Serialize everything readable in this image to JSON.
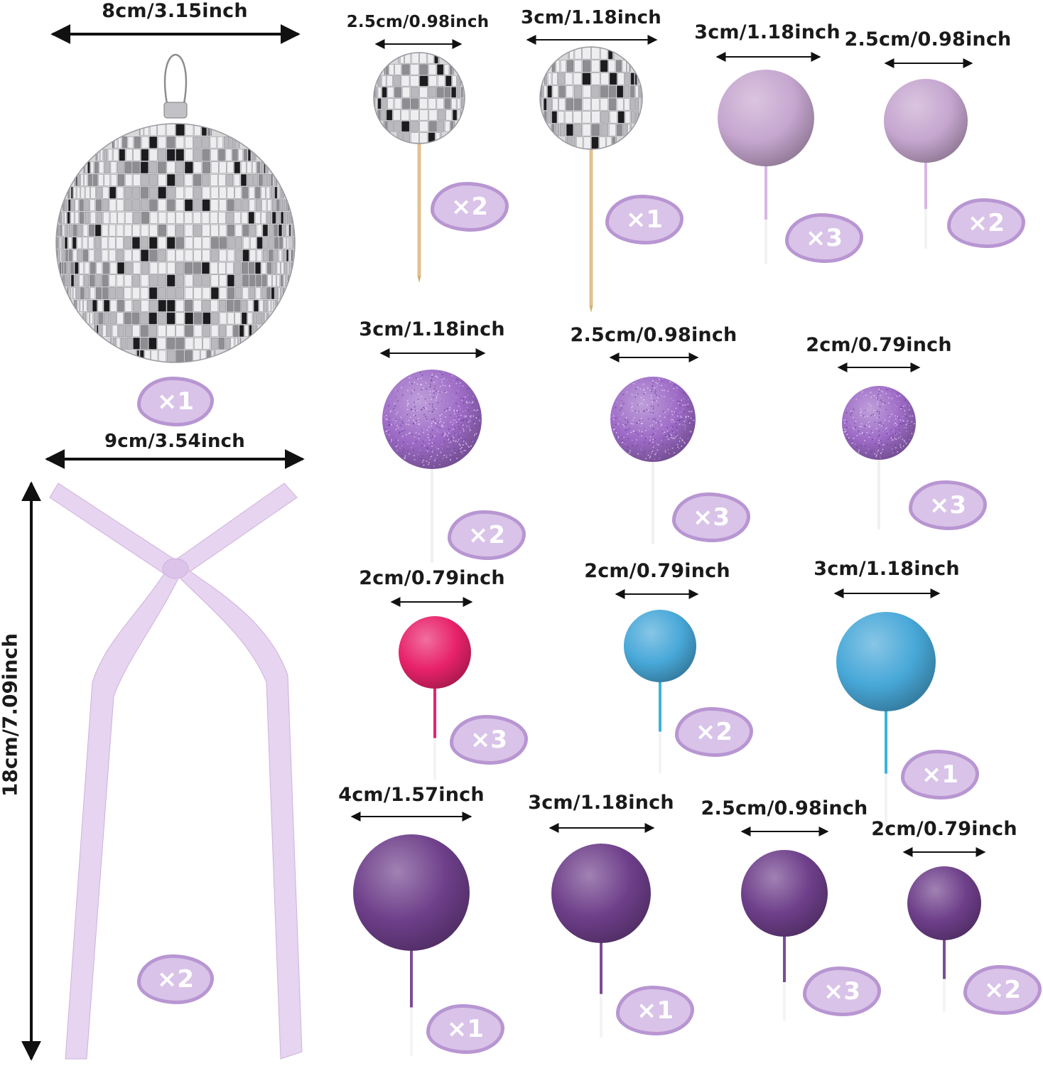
{
  "colors": {
    "badge_fill": "#d9c3e8",
    "badge_border": "#b896d2",
    "silver": "#c9c9cc",
    "lavender_matte": "#c6a6cf",
    "purple_glitter": "#9d6bc6",
    "hot_pink": "#e8226a",
    "sky_blue": "#48a8d8",
    "deep_purple": "#6e3f8a",
    "ribbon": "#e7d4f0"
  },
  "items": [
    {
      "id": "disco-ornament",
      "type": "disco-large",
      "size_label": "8cm/3.15inch",
      "qty_label": "×1"
    },
    {
      "id": "satin-ribbon-bow",
      "type": "ribbon",
      "width_label": "9cm/3.54inch",
      "length_label": "18cm/7.09inch",
      "qty_label": "×2"
    },
    {
      "id": "disco-topper-small",
      "type": "disco",
      "size_label": "2.5cm/0.98inch",
      "qty_label": "×2"
    },
    {
      "id": "disco-topper-large",
      "type": "disco",
      "size_label": "3cm/1.18inch",
      "qty_label": "×1"
    },
    {
      "id": "lavender-ball-3cm",
      "type": "matte",
      "color": "lavender",
      "size_label": "3cm/1.18inch",
      "qty_label": "×3"
    },
    {
      "id": "lavender-ball-2-5cm",
      "type": "matte",
      "color": "lavender",
      "size_label": "2.5cm/0.98inch",
      "qty_label": "×2"
    },
    {
      "id": "glitter-ball-3cm",
      "type": "glitter",
      "size_label": "3cm/1.18inch",
      "qty_label": "×2"
    },
    {
      "id": "glitter-ball-2-5cm",
      "type": "glitter",
      "size_label": "2.5cm/0.98inch",
      "qty_label": "×3"
    },
    {
      "id": "glitter-ball-2cm",
      "type": "glitter",
      "size_label": "2cm/0.79inch",
      "qty_label": "×3"
    },
    {
      "id": "pink-ball-2cm",
      "type": "matte",
      "color": "hot pink",
      "size_label": "2cm/0.79inch",
      "qty_label": "×3"
    },
    {
      "id": "blue-ball-2cm",
      "type": "matte",
      "color": "sky blue",
      "size_label": "2cm/0.79inch",
      "qty_label": "×2"
    },
    {
      "id": "blue-ball-3cm",
      "type": "matte",
      "color": "sky blue",
      "size_label": "3cm/1.18inch",
      "qty_label": "×1"
    },
    {
      "id": "purple-ball-4cm",
      "type": "matte",
      "color": "deep purple",
      "size_label": "4cm/1.57inch",
      "qty_label": "×1"
    },
    {
      "id": "purple-ball-3cm",
      "type": "matte",
      "color": "deep purple",
      "size_label": "3cm/1.18inch",
      "qty_label": "×1"
    },
    {
      "id": "purple-ball-2-5cm",
      "type": "matte",
      "color": "deep purple",
      "size_label": "2.5cm/0.98inch",
      "qty_label": "×3"
    },
    {
      "id": "purple-ball-2cm",
      "type": "matte",
      "color": "deep purple",
      "size_label": "2cm/0.79inch",
      "qty_label": "×2"
    }
  ]
}
